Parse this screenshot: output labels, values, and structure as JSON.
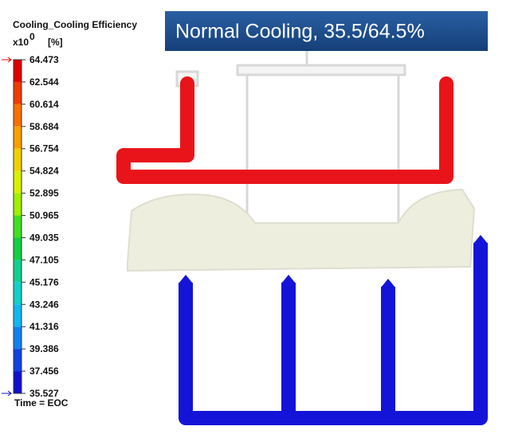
{
  "legend": {
    "title": "Cooling_Cooling Efficiency",
    "scale": "x10",
    "exponent": "0",
    "unit": "[%]",
    "ticks": [
      "64.473",
      "62.544",
      "60.614",
      "58.684",
      "56.754",
      "54.824",
      "52.895",
      "50.965",
      "49.035",
      "47.105",
      "45.176",
      "43.246",
      "41.316",
      "39.386",
      "37.456",
      "35.527"
    ],
    "footer": "Time = EOC"
  },
  "banner": "Normal Cooling, 35.5/64.5%"
}
